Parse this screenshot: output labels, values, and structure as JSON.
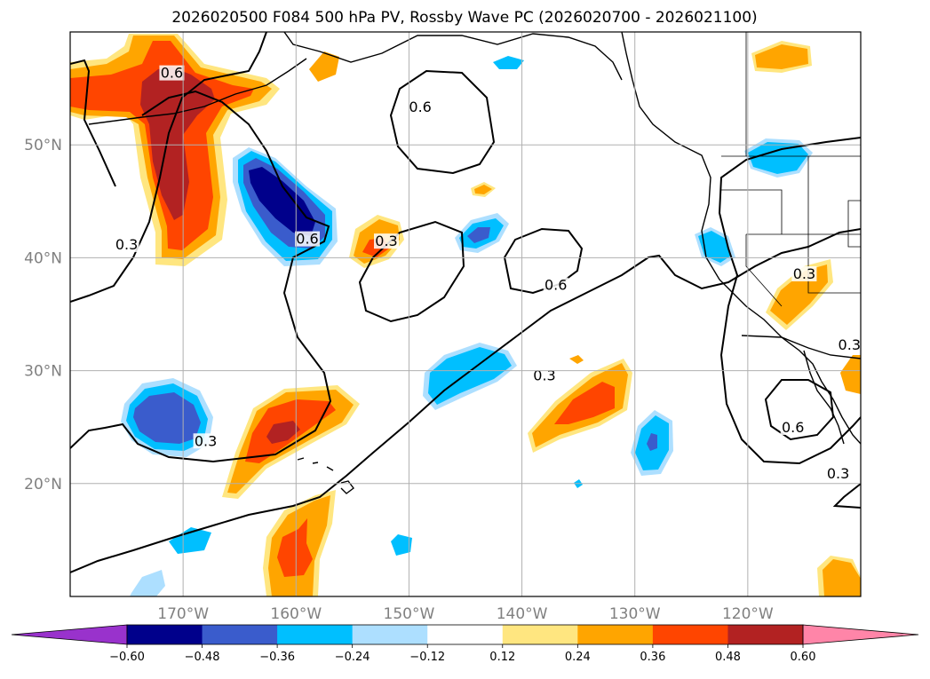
{
  "chart_data": {
    "type": "heatmap",
    "title": "2026020500 F084 500 hPa PV, Rossby Wave PC (2026020700 - 2026021100)",
    "map": {
      "projection": "PlateCarree",
      "lon_range": [
        -180,
        -110
      ],
      "lat_range": [
        10,
        60
      ],
      "grid": true,
      "coastlines": true,
      "borders": true
    },
    "x_ticks": [
      {
        "lon": -170,
        "label": "170°W"
      },
      {
        "lon": -160,
        "label": "160°W"
      },
      {
        "lon": -150,
        "label": "150°W"
      },
      {
        "lon": -140,
        "label": "140°W"
      },
      {
        "lon": -130,
        "label": "130°W"
      },
      {
        "lon": -120,
        "label": "120°W"
      }
    ],
    "y_ticks": [
      {
        "lat": 20,
        "label": "20°N"
      },
      {
        "lat": 30,
        "label": "30°N"
      },
      {
        "lat": 40,
        "label": "40°N"
      },
      {
        "lat": 50,
        "label": "50°N"
      }
    ],
    "colorbar": {
      "boundaries": [
        "−0.60",
        "−0.48",
        "−0.36",
        "−0.24",
        "−0.12",
        "0.12",
        "0.24",
        "0.36",
        "0.48",
        "0.60"
      ],
      "colors": [
        "#9932CC",
        "#00008B",
        "#3A5CCC",
        "#00BFFF",
        "#ADDFFF",
        "#FFFFFF",
        "#FFE680",
        "#FFA500",
        "#FF4500",
        "#B22222",
        "#FF85A8"
      ],
      "extend": "both"
    },
    "contour_levels": [
      "0.3",
      "0.6"
    ],
    "contour_labels": [
      {
        "text": "0.6",
        "lon": -171.0,
        "lat": 56.1
      },
      {
        "text": "0.6",
        "lon": -149.0,
        "lat": 53.1
      },
      {
        "text": "0.6",
        "lon": -159.0,
        "lat": 41.4
      },
      {
        "text": "0.3",
        "lon": -152.0,
        "lat": 41.2
      },
      {
        "text": "0.6",
        "lon": -137.0,
        "lat": 37.3
      },
      {
        "text": "0.3",
        "lon": -175.0,
        "lat": 40.9
      },
      {
        "text": "0.3",
        "lon": -138.0,
        "lat": 29.3
      },
      {
        "text": "0.3",
        "lon": -168.0,
        "lat": 23.5
      },
      {
        "text": "0.3",
        "lon": -115.0,
        "lat": 38.3
      },
      {
        "text": "0.6",
        "lon": -116.0,
        "lat": 24.7
      },
      {
        "text": "0.3",
        "lon": -111.0,
        "lat": 32.0
      },
      {
        "text": "0.3",
        "lon": -112.0,
        "lat": 20.6
      }
    ],
    "anomalies": [
      {
        "lon": -172.0,
        "lat": 53.5,
        "value": 0.5
      },
      {
        "lon": -165.5,
        "lat": 45.0,
        "value": -0.55
      },
      {
        "lon": -147.0,
        "lat": 31.0,
        "value": -0.3
      },
      {
        "lon": -170.0,
        "lat": 25.0,
        "value": -0.42
      },
      {
        "lon": -161.5,
        "lat": 25.0,
        "value": 0.5
      },
      {
        "lon": -133.0,
        "lat": 27.0,
        "value": 0.42
      },
      {
        "lon": -129.0,
        "lat": 23.0,
        "value": -0.4
      },
      {
        "lon": -151.0,
        "lat": 41.0,
        "value": 0.42
      },
      {
        "lon": -144.0,
        "lat": 41.5,
        "value": -0.38
      },
      {
        "lon": -160.0,
        "lat": 14.0,
        "value": 0.4
      },
      {
        "lon": -117.5,
        "lat": 38.0,
        "value": 0.32
      },
      {
        "lon": -120.0,
        "lat": 49.0,
        "value": -0.3
      },
      {
        "lon": -123.0,
        "lat": 40.5,
        "value": -0.3
      },
      {
        "lon": -116.0,
        "lat": 57.5,
        "value": 0.28
      },
      {
        "lon": -112.5,
        "lat": 12.0,
        "value": 0.28
      }
    ]
  }
}
